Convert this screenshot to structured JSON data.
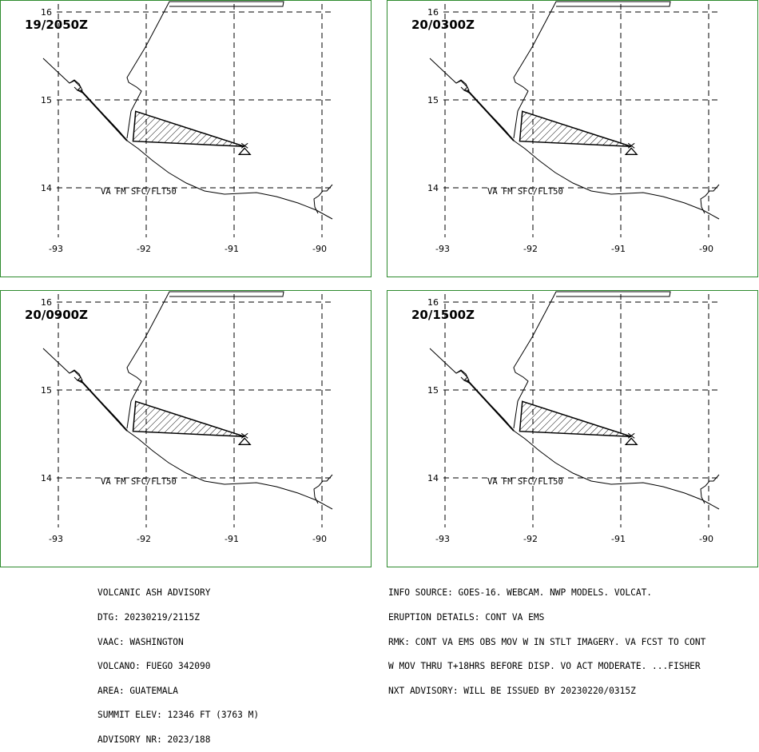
{
  "panels": [
    {
      "time_label": "19/2050Z",
      "layer_label": "VA FM SFC/FLT50"
    },
    {
      "time_label": "20/0300Z",
      "layer_label": "VA FM SFC/FLT50"
    },
    {
      "time_label": "20/0900Z",
      "layer_label": "VA FM SFC/FLT50"
    },
    {
      "time_label": "20/1500Z",
      "layer_label": "VA FM SFC/FLT50"
    }
  ],
  "map": {
    "lon_labels": [
      "-93",
      "-92",
      "-91",
      "-90"
    ],
    "lat_labels": [
      "16",
      "15",
      "14"
    ],
    "lon_ticks": [
      -93,
      -92,
      -91,
      -90
    ],
    "lat_ticks": [
      16,
      15,
      14
    ],
    "volcano": {
      "name": "FUEGO",
      "lat": 14.47,
      "lon": -90.88,
      "icon": "volcano-triangle-icon"
    },
    "ash_polygon": [
      [
        14.87,
        -92.12
      ],
      [
        14.47,
        -90.88
      ],
      [
        14.53,
        -92.15
      ]
    ],
    "colors": {
      "frame": "#2e8b2e",
      "lines": "#000000",
      "background": "#ffffff"
    }
  },
  "advisory_left": [
    "VOLCANIC ASH ADVISORY",
    "DTG: 20230219/2115Z",
    "VAAC: WASHINGTON",
    "VOLCANO: FUEGO 342090",
    "AREA: GUATEMALA",
    "SUMMIT ELEV: 12346 FT (3763 M)",
    "ADVISORY NR: 2023/188"
  ],
  "advisory_right": [
    "INFO SOURCE: GOES-16. WEBCAM. NWP MODELS. VOLCAT.",
    "ERUPTION DETAILS: CONT VA EMS",
    "RMK: CONT VA EMS OBS MOV W IN STLT IMAGERY. VA FCST TO CONT",
    "W MOV THRU T+18HRS BEFORE DISP. VO ACT MODERATE. ...FISHER",
    "NXT ADVISORY: WILL BE ISSUED BY 20230220/0315Z"
  ]
}
